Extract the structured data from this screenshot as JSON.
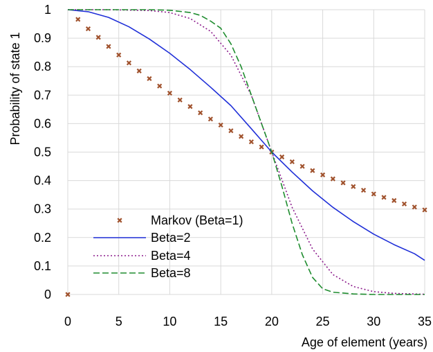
{
  "chart_data": {
    "type": "line",
    "xlabel": "Age of element (years)",
    "ylabel": "Probability of state 1",
    "xlim": [
      0,
      35
    ],
    "ylim": [
      0,
      1
    ],
    "xticks": [
      "0",
      "5",
      "10",
      "15",
      "20",
      "25",
      "30",
      "35"
    ],
    "yticks": [
      "0",
      "0.1",
      "0.2",
      "0.3",
      "0.4",
      "0.5",
      "0.6",
      "0.7",
      "0.8",
      "0.9",
      "1"
    ],
    "grid": "major",
    "legend_position": "bottom-left",
    "series": [
      {
        "name": "Markov (Beta=1)",
        "style": "markers",
        "color": "#a0522d",
        "x": [
          0,
          1,
          2,
          3,
          4,
          5,
          6,
          7,
          8,
          9,
          10,
          11,
          12,
          13,
          14,
          15,
          16,
          17,
          18,
          19,
          20,
          21,
          22,
          23,
          24,
          25,
          26,
          27,
          28,
          29,
          30,
          31,
          32,
          33,
          34,
          35
        ],
        "y": [
          0.0,
          0.966,
          0.933,
          0.903,
          0.871,
          0.841,
          0.813,
          0.785,
          0.758,
          0.732,
          0.707,
          0.683,
          0.66,
          0.638,
          0.616,
          0.595,
          0.575,
          0.555,
          0.536,
          0.518,
          0.5,
          0.483,
          0.466,
          0.45,
          0.435,
          0.42,
          0.406,
          0.392,
          0.379,
          0.366,
          0.353,
          0.341,
          0.33,
          0.318,
          0.307,
          0.297
        ]
      },
      {
        "name": "Beta=2",
        "style": "solid",
        "color": "#1f2fd8",
        "x": [
          0,
          2,
          4,
          6,
          8,
          10,
          12,
          14,
          16,
          18,
          20,
          22,
          24,
          26,
          28,
          30,
          32,
          34,
          35
        ],
        "y": [
          1.0,
          0.993,
          0.973,
          0.94,
          0.897,
          0.847,
          0.79,
          0.728,
          0.663,
          0.582,
          0.5,
          0.43,
          0.364,
          0.306,
          0.256,
          0.212,
          0.175,
          0.143,
          0.12
        ]
      },
      {
        "name": "Beta=4",
        "style": "dotted",
        "color": "#8b1a8b",
        "x": [
          0,
          4,
          8,
          10,
          12,
          14,
          16,
          18,
          20,
          22,
          24,
          26,
          28,
          30,
          32,
          34,
          35
        ],
        "y": [
          1.0,
          1.0,
          0.997,
          0.99,
          0.969,
          0.924,
          0.84,
          0.699,
          0.5,
          0.306,
          0.16,
          0.07,
          0.028,
          0.01,
          0.004,
          0.002,
          0.001
        ]
      },
      {
        "name": "Beta=8",
        "style": "dashed",
        "color": "#1e8c2e",
        "x": [
          0,
          8,
          10,
          12,
          13,
          14,
          15,
          16,
          17,
          18,
          19,
          20,
          21,
          22,
          23,
          24,
          25,
          26,
          28,
          30,
          35
        ],
        "y": [
          1.0,
          1.0,
          0.998,
          0.99,
          0.98,
          0.96,
          0.935,
          0.88,
          0.8,
          0.7,
          0.6,
          0.5,
          0.38,
          0.25,
          0.14,
          0.06,
          0.02,
          0.008,
          0.002,
          0.0,
          0.0
        ]
      }
    ]
  }
}
